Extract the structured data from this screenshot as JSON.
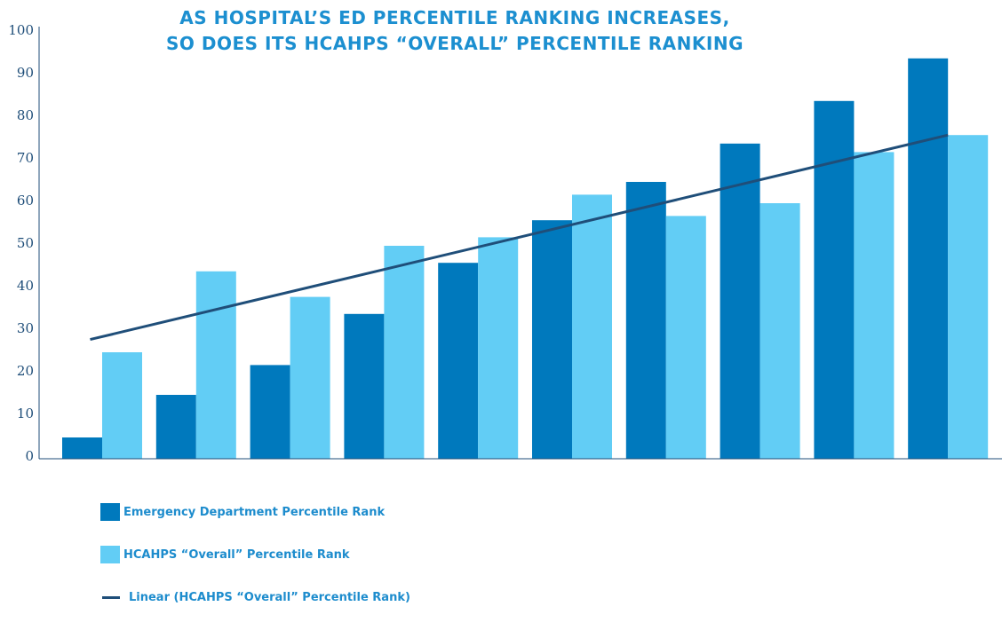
{
  "chart_data": {
    "type": "bar",
    "title_lines": [
      "AS HOSPITAL’S ED PERCENTILE RANKING INCREASES,",
      "SO DOES ITS HCAHPS “OVERALL” PERCENTILE RANKING"
    ],
    "categories": [
      "",
      "",
      "",
      "",
      "",
      "",
      "",
      "",
      "",
      ""
    ],
    "series": [
      {
        "name": "Emergency Department Percentile Rank",
        "values": [
          5,
          15,
          22,
          34,
          46,
          56,
          65,
          74,
          84,
          94
        ],
        "color": "#0079bd"
      },
      {
        "name": "HCAHPS “Overall” Percentile Rank",
        "values": [
          25,
          44,
          38,
          50,
          52,
          62,
          57,
          60,
          72,
          76
        ],
        "color": "#62cdf5"
      }
    ],
    "trendline": {
      "name": "Linear (HCAHPS “Overall” Percentile Rank)",
      "start": 28,
      "end": 76,
      "color": "#1f4e79"
    },
    "yticks": [
      "0",
      "10",
      "20",
      "30",
      "40",
      "50",
      "60",
      "70",
      "80",
      "90",
      "100"
    ],
    "ylim": [
      0,
      100
    ],
    "xlabel": "",
    "ylabel": "",
    "legend_position": "bottom-left",
    "grid": false
  }
}
